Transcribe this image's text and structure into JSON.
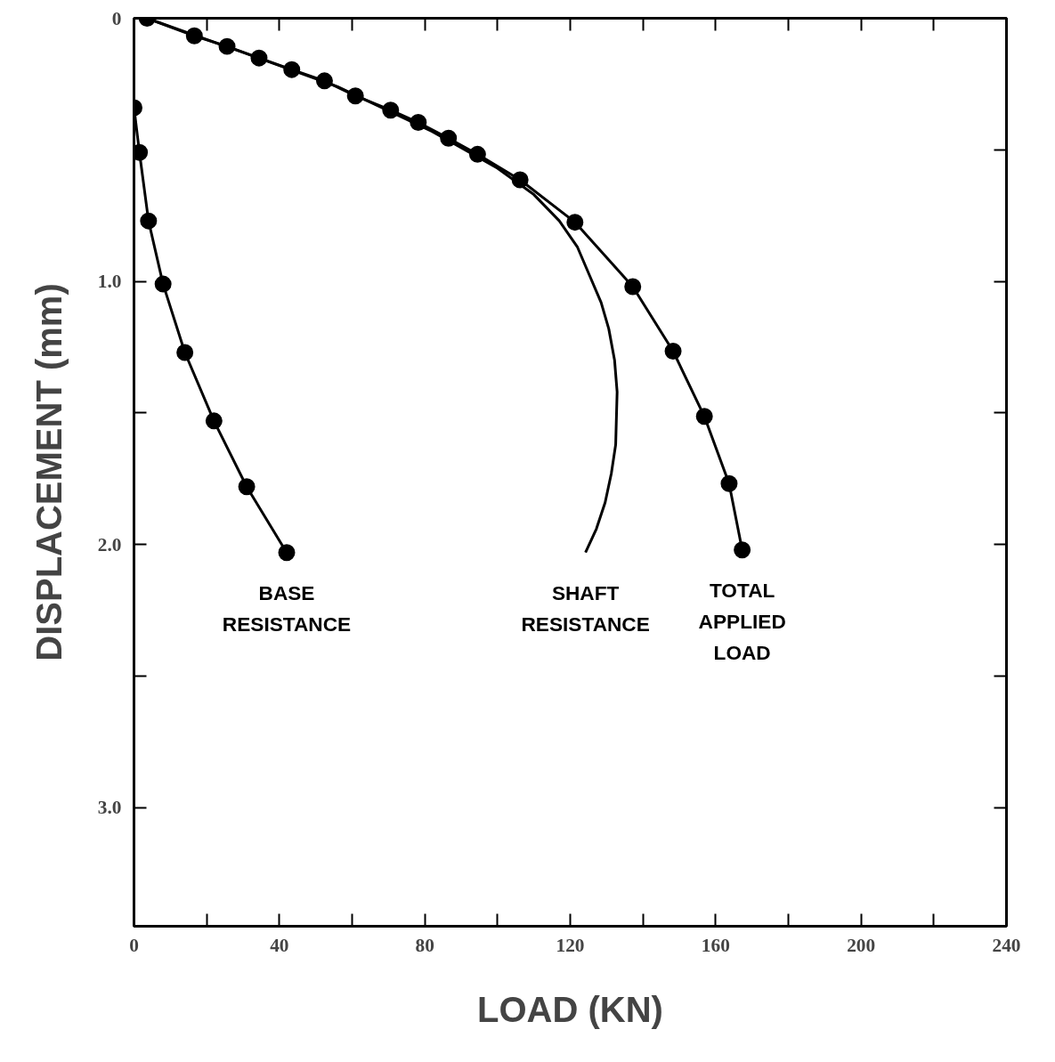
{
  "chart_data": {
    "type": "line",
    "xlabel": "LOAD (KN)",
    "ylabel": "DISPLACEMENT (mm)",
    "xlim": [
      0,
      240
    ],
    "ylim": [
      3.45,
      0
    ],
    "xticks": [
      0,
      {
        "value": 20,
        "label": null
      },
      40,
      {
        "value": 60,
        "label": null
      },
      80,
      {
        "value": 100,
        "label": null
      },
      120,
      {
        "value": 140,
        "label": null
      },
      160,
      {
        "value": 180,
        "label": null
      },
      200,
      {
        "value": 220,
        "label": null
      },
      240
    ],
    "yticks": [
      0,
      {
        "value": 0.5,
        "label": null
      },
      {
        "value": 1.0,
        "label": "1.0"
      },
      {
        "value": 1.5,
        "label": null
      },
      {
        "value": 2.0,
        "label": "2.0"
      },
      {
        "value": 2.5,
        "label": null
      },
      {
        "value": 3.0,
        "label": "3.0"
      }
    ],
    "grid": false,
    "series": [
      {
        "name": "BASE RESISTANCE",
        "color": "#000000",
        "marker": "circle",
        "x": [
          0,
          1.5,
          4,
          8,
          14,
          22,
          31,
          42
        ],
        "values": [
          0.34,
          0.51,
          0.77,
          1.01,
          1.27,
          1.53,
          1.78,
          2.03
        ]
      },
      {
        "name": "SHAFT RESISTANCE",
        "color": "#000000",
        "marker": "none",
        "x": [
          3.6,
          30,
          56,
          82,
          100,
          110,
          117,
          122,
          125.4,
          128.5,
          130.6,
          132.2,
          132.9,
          132.5,
          131.3,
          129.6,
          127.2,
          124.2
        ],
        "values": [
          0,
          0.13,
          0.26,
          0.43,
          0.57,
          0.67,
          0.77,
          0.87,
          0.98,
          1.08,
          1.18,
          1.3,
          1.42,
          1.62,
          1.73,
          1.84,
          1.94,
          2.03
        ]
      },
      {
        "name": "TOTAL APPLIED LOAD",
        "color": "#000000",
        "marker": "circle",
        "x": [
          3.6,
          16.6,
          25.6,
          34.4,
          43.4,
          52.4,
          60.9,
          70.6,
          78.2,
          86.5,
          94.5,
          106.2,
          121.3,
          137.2,
          148.3,
          156.9,
          163.7,
          167.3
        ],
        "values": [
          0,
          0.067,
          0.107,
          0.151,
          0.195,
          0.238,
          0.295,
          0.349,
          0.396,
          0.456,
          0.517,
          0.614,
          0.775,
          1.02,
          1.265,
          1.513,
          1.768,
          2.02
        ]
      }
    ]
  }
}
